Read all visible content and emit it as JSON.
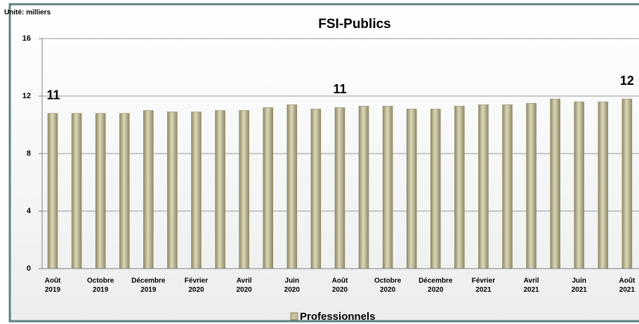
{
  "chart_data": {
    "type": "bar",
    "title": "FSI-Publics",
    "unit_label": "Unité: milliers",
    "categories": [
      "Août 2019",
      null,
      "Octobre 2019",
      null,
      "Décembre 2019",
      null,
      "Février 2020",
      null,
      "Avril 2020",
      null,
      "Juin 2020",
      null,
      "Août 2020",
      null,
      "Octobre 2020",
      null,
      "Décembre 2020",
      null,
      "Février 2021",
      null,
      "Avril 2021",
      null,
      "Juin 2021",
      null,
      "Août 2021"
    ],
    "series": [
      {
        "name": "Professionnels",
        "color": "#c6c09c",
        "values": [
          10.8,
          10.8,
          10.8,
          10.8,
          11.0,
          10.9,
          10.9,
          11.0,
          11.0,
          11.2,
          11.4,
          11.1,
          11.2,
          11.3,
          11.3,
          11.1,
          11.1,
          11.3,
          11.4,
          11.4,
          11.5,
          11.8,
          11.6,
          11.6,
          11.8
        ],
        "value_labels": [
          "11",
          null,
          null,
          null,
          null,
          null,
          null,
          null,
          null,
          null,
          null,
          null,
          "11",
          null,
          null,
          null,
          null,
          null,
          null,
          null,
          null,
          null,
          null,
          null,
          "12"
        ]
      }
    ],
    "ylim": [
      0,
      16
    ],
    "yticks": [
      0,
      4,
      8,
      12,
      16
    ],
    "grid": true,
    "legend": "bottom"
  }
}
